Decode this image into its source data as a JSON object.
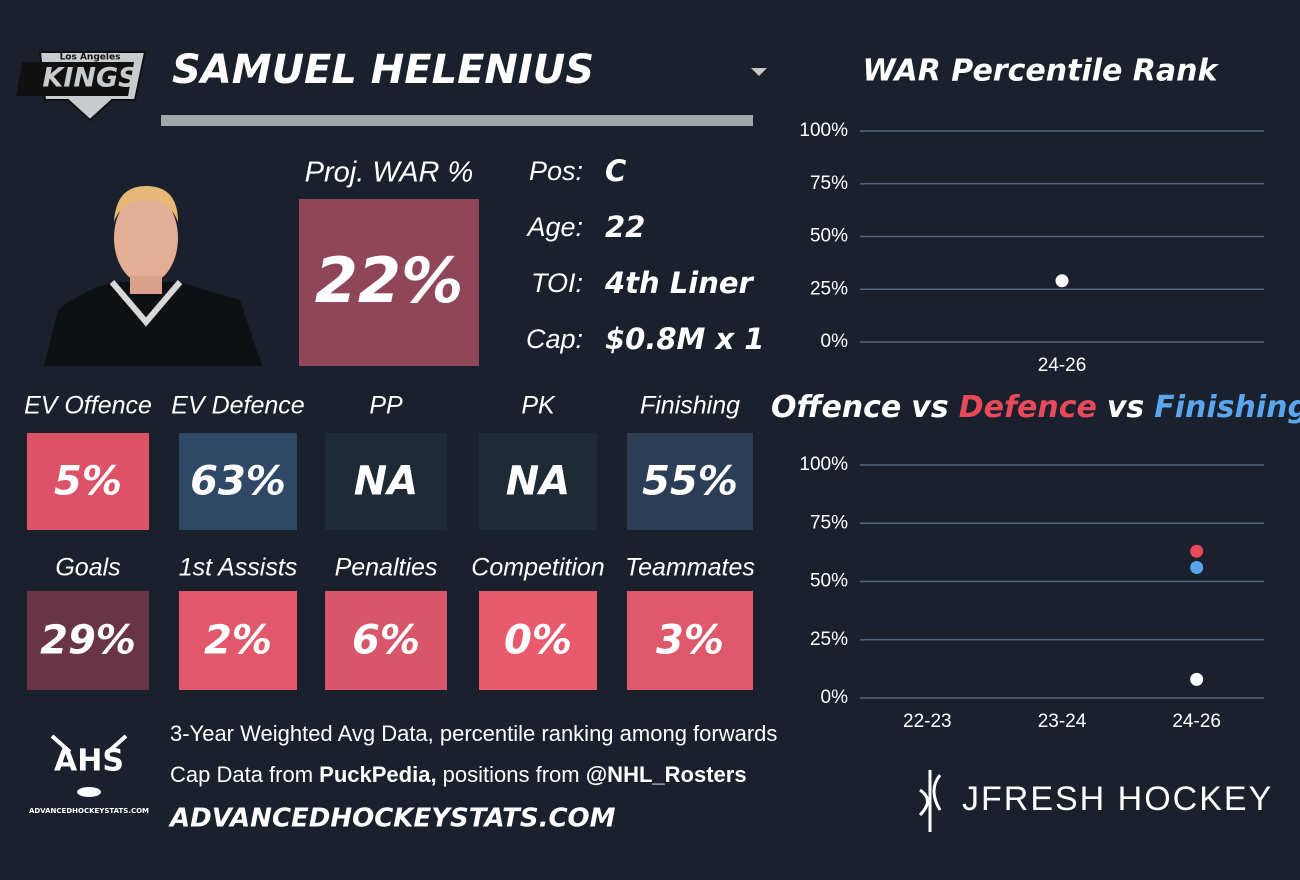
{
  "header": {
    "logo_city": "Los Angeles",
    "logo_name": "KINGS",
    "player_name": "SAMUEL HELENIUS"
  },
  "projection": {
    "label": "Proj. WAR %",
    "value": "22%",
    "color": "#8e4658"
  },
  "info": [
    {
      "label": "Pos:",
      "value": "C"
    },
    {
      "label": "Age:",
      "value": "22"
    },
    {
      "label": "TOI:",
      "value": "4th Liner"
    },
    {
      "label": "Cap:",
      "value": "$0.8M x 1"
    }
  ],
  "tiles": [
    [
      {
        "label": "EV Offence",
        "value": "5%",
        "color": "#dd5266"
      },
      {
        "label": "EV Defence",
        "value": "63%",
        "color": "#2f4866"
      },
      {
        "label": "PP",
        "value": "NA",
        "color": "#1f2a37"
      },
      {
        "label": "PK",
        "value": "NA",
        "color": "#1f2a37"
      },
      {
        "label": "Finishing",
        "value": "55%",
        "color": "#2c3e56"
      }
    ],
    [
      {
        "label": "Goals",
        "value": "29%",
        "color": "#6a3447"
      },
      {
        "label": "1st Assists",
        "value": "2%",
        "color": "#e1586b"
      },
      {
        "label": "Penalties",
        "value": "6%",
        "color": "#d7566a"
      },
      {
        "label": "Competition",
        "value": "0%",
        "color": "#e85b6c"
      },
      {
        "label": "Teammates",
        "value": "3%",
        "color": "#df596b"
      }
    ]
  ],
  "footer": {
    "logo": "AHS",
    "logo_site": "ADVANCEDHOCKEYSTATS.COM",
    "note": "3-Year Weighted Avg Data, percentile ranking among forwards",
    "source_parts": [
      "Cap Data from ",
      "PuckPedia,",
      " positions from ",
      "@NHL_Rosters"
    ],
    "site": "ADVANCEDHOCKEYSTATS.COM"
  },
  "brand": "JFRESH HOCKEY",
  "chart_data": [
    {
      "type": "scatter",
      "title": "WAR Percentile Rank",
      "categories": [
        "24-26"
      ],
      "values": [
        29
      ],
      "color": "#ffffff",
      "ylim": [
        0,
        100
      ],
      "yticks": [
        {
          "value": 0,
          "label": "0%"
        },
        {
          "value": 25,
          "label": "25%"
        },
        {
          "value": 50,
          "label": "50%"
        },
        {
          "value": 75,
          "label": "75%"
        },
        {
          "value": 100,
          "label": "100%"
        }
      ],
      "grid": true
    },
    {
      "type": "scatter",
      "title_joiner": "vs",
      "categories": [
        "22-23",
        "23-24",
        "24-26"
      ],
      "series": [
        {
          "name": "Offence",
          "color": "#ffffff",
          "values": [
            null,
            null,
            8
          ]
        },
        {
          "name": "Defence",
          "color": "#e8495b",
          "values": [
            null,
            null,
            63
          ]
        },
        {
          "name": "Finishing",
          "color": "#5aa6ee",
          "values": [
            null,
            null,
            56
          ]
        }
      ],
      "ylim": [
        0,
        100
      ],
      "yticks": [
        {
          "value": 0,
          "label": "0%"
        },
        {
          "value": 25,
          "label": "25%"
        },
        {
          "value": 50,
          "label": "50%"
        },
        {
          "value": 75,
          "label": "75%"
        },
        {
          "value": 100,
          "label": "100%"
        }
      ],
      "grid": true
    }
  ]
}
